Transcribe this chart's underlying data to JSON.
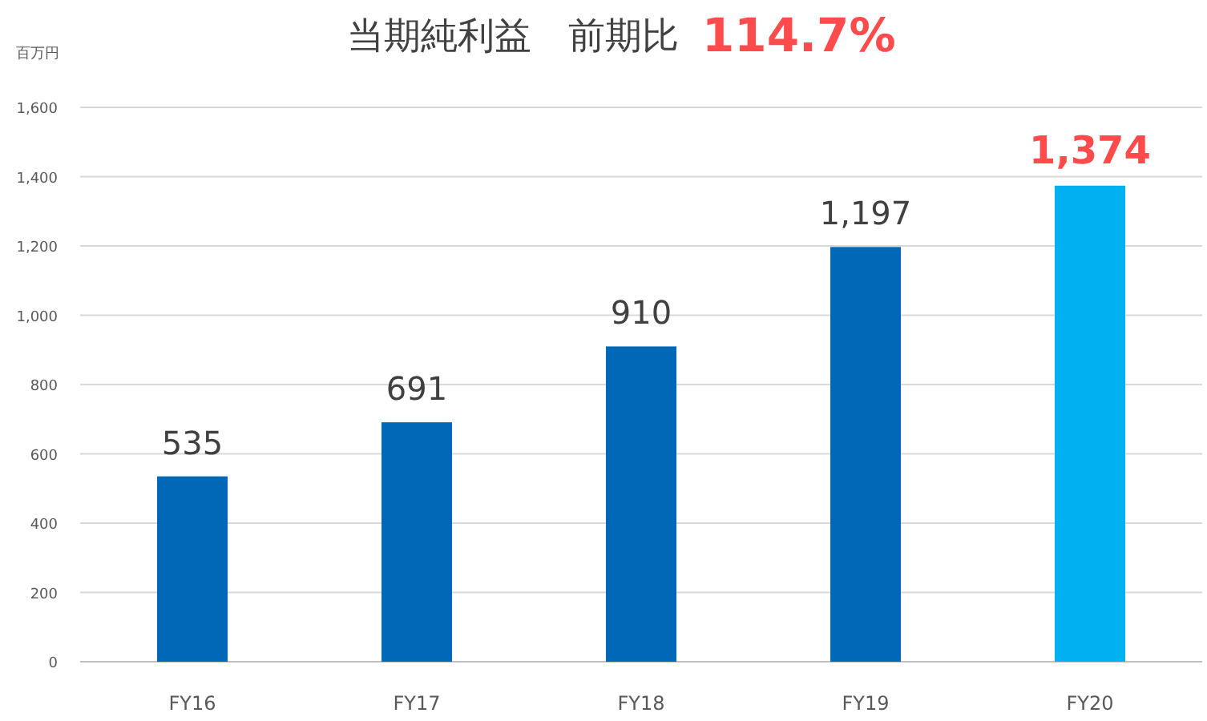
{
  "chart_data": {
    "type": "bar",
    "title": "当期純利益　前期比",
    "annotations": [
      "114.7%"
    ],
    "ylabel": "百万円",
    "categories": [
      "FY16",
      "FY17",
      "FY18",
      "FY19",
      "FY20"
    ],
    "values": [
      535,
      691,
      910,
      1197,
      1374
    ],
    "colors": [
      "#0068b7",
      "#0068b7",
      "#0068b7",
      "#0068b7",
      "#00b0f0"
    ],
    "value_labels": [
      "535",
      "691",
      "910",
      "1,197",
      "1,374"
    ],
    "ylim": [
      0,
      1600
    ],
    "yticks": [
      0,
      200,
      400,
      600,
      800,
      {
        "value": 1000,
        "label": "1,000"
      },
      {
        "value": 1200,
        "label": "1,200"
      },
      {
        "value": 1400,
        "label": "1,400"
      },
      {
        "value": 1600,
        "label": "1,600"
      }
    ],
    "grid": "y"
  }
}
